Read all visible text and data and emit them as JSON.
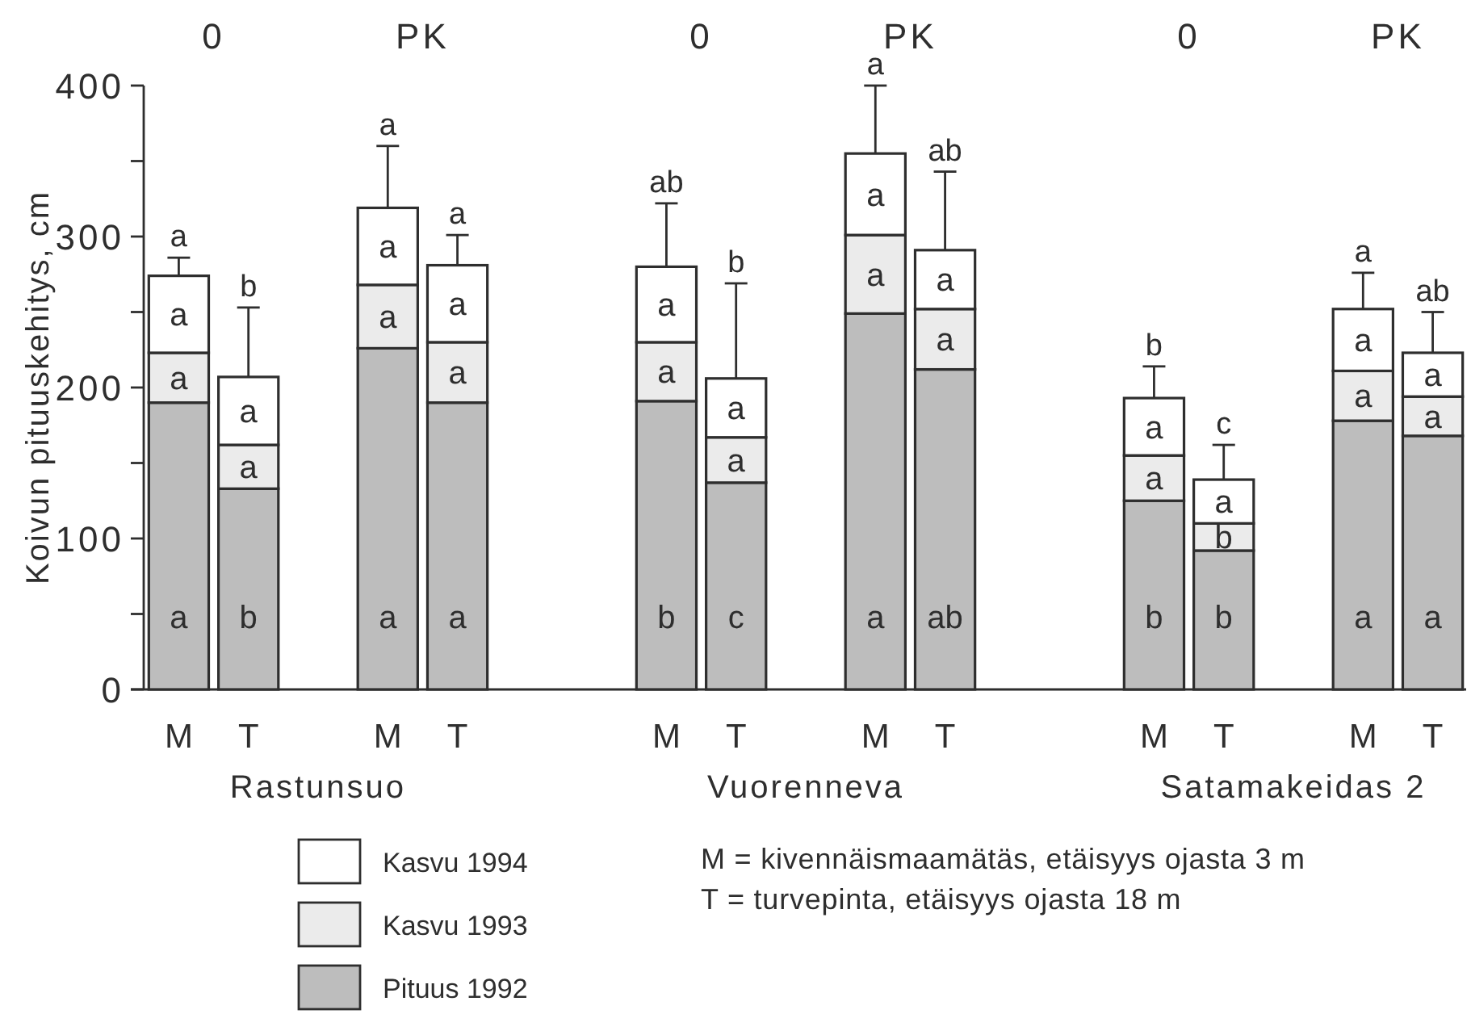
{
  "chart_data": {
    "type": "bar",
    "stacked": true,
    "ylabel": "Koivun pituuskehitys, cm",
    "categories": [
      "M",
      "T",
      null,
      "M",
      "T",
      null,
      null,
      "M",
      "T",
      null,
      "M",
      "T",
      null,
      null,
      "M",
      "T",
      null,
      "M",
      "T"
    ],
    "series": [
      {
        "name": "Pituus 1992",
        "color": "#bdbdbd",
        "values": [
          190,
          133,
          null,
          226,
          190,
          null,
          null,
          191,
          137,
          null,
          249,
          212,
          null,
          null,
          125,
          92,
          null,
          178,
          168
        ],
        "value_labels": [
          "a",
          "b",
          null,
          "a",
          "a",
          null,
          null,
          "b",
          "c",
          null,
          "a",
          "ab",
          null,
          null,
          "b",
          "b",
          null,
          "a",
          "a"
        ]
      },
      {
        "name": "Kasvu 1993",
        "color": "#ebebeb",
        "values": [
          33,
          29,
          null,
          42,
          40,
          null,
          null,
          39,
          30,
          null,
          52,
          40,
          null,
          null,
          30,
          18,
          null,
          33,
          26
        ],
        "value_labels": [
          "a",
          "a",
          null,
          "a",
          "a",
          null,
          null,
          "a",
          "a",
          null,
          "a",
          "a",
          null,
          null,
          "a",
          "b",
          null,
          "a",
          "a"
        ]
      },
      {
        "name": "Kasvu 1994",
        "color": "#ffffff",
        "values": [
          51,
          45,
          null,
          51,
          51,
          null,
          null,
          50,
          39,
          null,
          54,
          39,
          null,
          null,
          38,
          29,
          null,
          41,
          29
        ],
        "value_labels": [
          "a",
          "a",
          null,
          "a",
          "a",
          null,
          null,
          "a",
          "a",
          null,
          "a",
          "a",
          null,
          null,
          "a",
          "a",
          null,
          "a",
          "a"
        ],
        "errors": [
          [
            274,
            286
          ],
          [
            207,
            253
          ],
          null,
          [
            319,
            360
          ],
          [
            281,
            301
          ],
          null,
          null,
          [
            280,
            322
          ],
          [
            206,
            269
          ],
          null,
          [
            355,
            400
          ],
          [
            291,
            343
          ],
          null,
          null,
          [
            193,
            214
          ],
          [
            139,
            162
          ],
          null,
          [
            252,
            276
          ],
          [
            223,
            250
          ]
        ]
      }
    ],
    "ylim": [
      0,
      400
    ],
    "yticks": [
      0,
      {
        "value": 50,
        "label": null
      },
      100,
      {
        "value": 150,
        "label": null
      },
      200,
      {
        "value": 250,
        "label": null
      },
      300,
      {
        "value": 350,
        "label": null
      },
      400
    ],
    "legend": "bottom left",
    "annotations": [
      "0",
      "PK",
      "0",
      "PK",
      "0",
      "PK",
      "Rastunsuo",
      "Vuorenneva",
      "Satamakeidas 2",
      {
        "text": "a",
        "y": 286
      },
      {
        "text": "b",
        "y": 253
      },
      {
        "text": "a",
        "y": 360
      },
      {
        "text": "a",
        "y": 301
      },
      {
        "text": "ab",
        "y": 322
      },
      {
        "text": "b",
        "y": 269
      },
      {
        "text": "a",
        "y": 400
      },
      {
        "text": "ab",
        "y": 343
      },
      {
        "text": "b",
        "y": 214
      },
      {
        "text": "c",
        "y": 162
      },
      {
        "text": "a",
        "y": 276
      },
      {
        "text": "ab",
        "y": 250
      },
      "M = kivennäismaamätäs, etäisyys ojasta 3 m",
      "T = turvepinta, etäisyys ojasta 18 m"
    ]
  }
}
